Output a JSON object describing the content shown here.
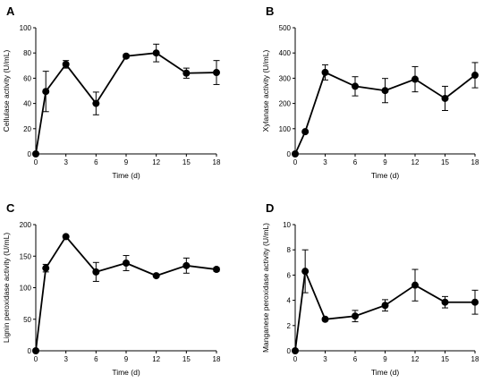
{
  "chart_data": [
    {
      "panel": "A",
      "type": "line",
      "xlabel": "Time (d)",
      "ylabel": "Cellulase activity (U/mL)",
      "xlim": [
        0,
        18
      ],
      "ylim": [
        0,
        100
      ],
      "xticks": [
        0,
        3,
        6,
        9,
        12,
        15,
        18
      ],
      "yticks": [
        0,
        20,
        40,
        60,
        80,
        100
      ],
      "x": [
        0,
        1,
        3,
        6,
        9,
        12,
        15,
        18
      ],
      "y": [
        0,
        49.5,
        71,
        40,
        77.5,
        80,
        64,
        64.5
      ],
      "error": [
        0,
        16,
        3,
        9,
        1.5,
        7,
        4,
        9.5
      ]
    },
    {
      "panel": "B",
      "type": "line",
      "xlabel": "Time (d)",
      "ylabel": "Xylanase activity (U/mL)",
      "xlim": [
        0,
        18
      ],
      "ylim": [
        0,
        500
      ],
      "xticks": [
        0,
        3,
        6,
        9,
        12,
        15,
        18
      ],
      "yticks": [
        0,
        100,
        200,
        300,
        400,
        500
      ],
      "x": [
        0,
        1,
        3,
        6,
        9,
        12,
        15,
        18
      ],
      "y": [
        0,
        88,
        323,
        268,
        251,
        296,
        220,
        312
      ],
      "error": [
        0,
        5,
        30,
        38,
        48,
        50,
        48,
        50
      ]
    },
    {
      "panel": "C",
      "type": "line",
      "xlabel": "Time (d)",
      "ylabel": "Lignin peroxidase activity (U/mL)",
      "xlim": [
        0,
        18
      ],
      "ylim": [
        0,
        200
      ],
      "xticks": [
        0,
        3,
        6,
        9,
        12,
        15,
        18
      ],
      "yticks": [
        0,
        50,
        100,
        150,
        200
      ],
      "x": [
        0,
        1,
        3,
        6,
        9,
        12,
        15,
        18
      ],
      "y": [
        0,
        131,
        181,
        125,
        139,
        119,
        135,
        129
      ],
      "error": [
        0,
        6,
        2,
        15,
        12,
        2,
        12,
        3
      ]
    },
    {
      "panel": "D",
      "type": "line",
      "xlabel": "Time (d)",
      "ylabel": "Manganese peroxidase activity (U/mL)",
      "xlim": [
        0,
        18
      ],
      "ylim": [
        0,
        10
      ],
      "xticks": [
        0,
        3,
        6,
        9,
        12,
        15,
        18
      ],
      "yticks": [
        0,
        2,
        4,
        6,
        8,
        10
      ],
      "x": [
        0,
        1,
        3,
        6,
        9,
        12,
        15,
        18
      ],
      "y": [
        0,
        6.3,
        2.5,
        2.75,
        3.6,
        5.2,
        3.85,
        3.85
      ],
      "error": [
        0,
        1.7,
        0.1,
        0.45,
        0.45,
        1.25,
        0.45,
        0.95
      ]
    }
  ]
}
